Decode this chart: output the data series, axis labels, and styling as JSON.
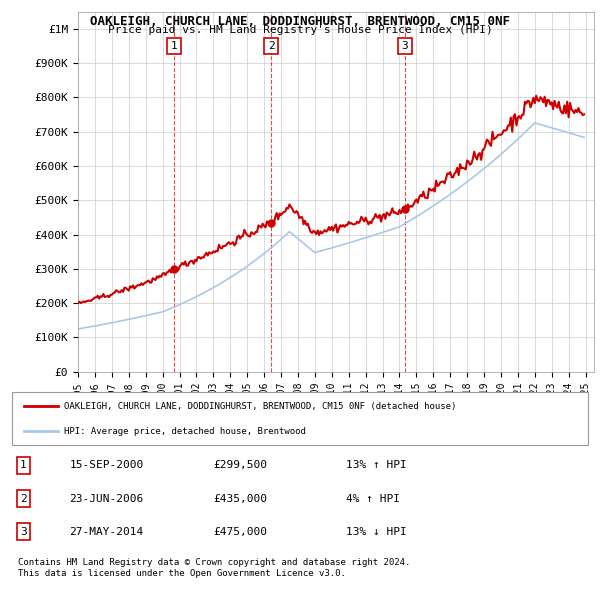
{
  "title": "OAKLEIGH, CHURCH LANE, DODDINGHURST, BRENTWOOD, CM15 0NF",
  "subtitle": "Price paid vs. HM Land Registry's House Price Index (HPI)",
  "ylabel_ticks": [
    "£0",
    "£100K",
    "£200K",
    "£300K",
    "£400K",
    "£500K",
    "£600K",
    "£700K",
    "£800K",
    "£900K",
    "£1M"
  ],
  "ytick_values": [
    0,
    100000,
    200000,
    300000,
    400000,
    500000,
    600000,
    700000,
    800000,
    900000,
    1000000
  ],
  "ylim": [
    0,
    1050000
  ],
  "x_start_year": 1995,
  "x_end_year": 2025,
  "sale_dates": [
    "2000-09-15",
    "2006-06-23",
    "2014-05-27"
  ],
  "sale_prices": [
    299500,
    435000,
    475000
  ],
  "sale_labels": [
    "1",
    "2",
    "3"
  ],
  "sale_info": [
    {
      "label": "1",
      "date": "15-SEP-2000",
      "price": "£299,500",
      "pct": "13%",
      "dir": "↑",
      "vs": "HPI"
    },
    {
      "label": "2",
      "date": "23-JUN-2006",
      "price": "£435,000",
      "pct": "4%",
      "dir": "↑",
      "vs": "HPI"
    },
    {
      "label": "3",
      "date": "27-MAY-2014",
      "price": "£475,000",
      "pct": "13%",
      "dir": "↓",
      "vs": "HPI"
    }
  ],
  "legend_line1": "OAKLEIGH, CHURCH LANE, DODDINGHURST, BRENTWOOD, CM15 0NF (detached house)",
  "legend_line2": "HPI: Average price, detached house, Brentwood",
  "footer1": "Contains HM Land Registry data © Crown copyright and database right 2024.",
  "footer2": "This data is licensed under the Open Government Licence v3.0.",
  "hpi_color": "#a8c8e8",
  "price_color": "#cc0000",
  "sale_marker_color": "#cc0000",
  "background_color": "#ffffff",
  "grid_color": "#cccccc"
}
